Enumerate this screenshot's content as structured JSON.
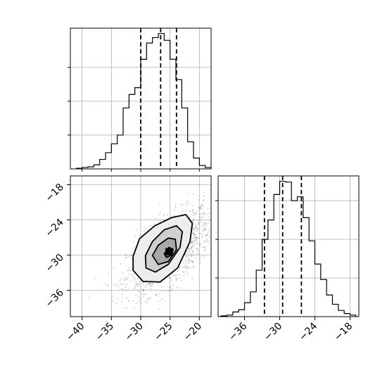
{
  "chart_data": [
    {
      "type": "histogram",
      "panel": "top-left (marginal of x parameter)",
      "xlim": [
        -42,
        -18
      ],
      "bin_edges": [
        -41,
        -40,
        -39,
        -38,
        -37,
        -36,
        -35,
        -34,
        -33,
        -32,
        -31,
        -30,
        -29,
        -28,
        -27,
        -26,
        -25,
        -24,
        -23,
        -22,
        -21,
        -20,
        -19,
        -18
      ],
      "counts": [
        1,
        2,
        3,
        6,
        14,
        24,
        37,
        50,
        90,
        110,
        120,
        162,
        186,
        194,
        200,
        190,
        162,
        132,
        90,
        40,
        16,
        5,
        2
      ],
      "quantiles": [
        -30,
        -26.6,
        -23.9
      ],
      "ticks": [],
      "grid": true
    },
    {
      "type": "scatter-contour",
      "panel": "bottom-left (joint distribution)",
      "xlim": [
        -42,
        -18
      ],
      "ylim": [
        -40.5,
        -16.5
      ],
      "x_ticks": [
        -40,
        -35,
        -30,
        -25,
        -20
      ],
      "y_ticks": [
        -18,
        -24,
        -30,
        -36
      ],
      "center": [
        -25.2,
        -29.4
      ],
      "density_peak": [
        -25.2,
        -29.4
      ],
      "contours": [
        [
          [
            -31.3,
            -30.2
          ],
          [
            -30.2,
            -27.2
          ],
          [
            -27.6,
            -25.0
          ],
          [
            -24.7,
            -23.6
          ],
          [
            -22.3,
            -23.1
          ],
          [
            -21.2,
            -24.6
          ],
          [
            -21.6,
            -27.7
          ],
          [
            -23.7,
            -32.2
          ],
          [
            -26.7,
            -34.6
          ],
          [
            -29.6,
            -34.5
          ],
          [
            -31.3,
            -32.6
          ]
        ],
        [
          [
            -29.2,
            -30.1
          ],
          [
            -28.0,
            -27.7
          ],
          [
            -26.0,
            -25.7
          ],
          [
            -23.9,
            -25.0
          ],
          [
            -22.9,
            -26.0
          ],
          [
            -23.3,
            -28.7
          ],
          [
            -25.3,
            -31.6
          ],
          [
            -27.5,
            -32.9
          ],
          [
            -29.1,
            -32.2
          ]
        ],
        [
          [
            -28.0,
            -30.1
          ],
          [
            -27.0,
            -28.3
          ],
          [
            -25.3,
            -27.1
          ],
          [
            -24.1,
            -27.3
          ],
          [
            -23.9,
            -29.1
          ],
          [
            -25.3,
            -31.1
          ],
          [
            -27.0,
            -31.6
          ]
        ],
        [
          [
            -26.0,
            -29.8
          ],
          [
            -25.2,
            -28.7
          ],
          [
            -24.5,
            -29.0
          ],
          [
            -24.7,
            -30.0
          ],
          [
            -25.6,
            -30.4
          ]
        ]
      ],
      "grid": true
    },
    {
      "type": "histogram",
      "panel": "bottom-right (marginal of y parameter)",
      "xlim": [
        -40.5,
        -16.5
      ],
      "x_ticks": [
        -36,
        -30,
        -24,
        -18
      ],
      "bin_edges": [
        -40,
        -39,
        -38,
        -37,
        -36,
        -35,
        -34,
        -33,
        -32,
        -31,
        -30,
        -29,
        -28,
        -27,
        -26,
        -25,
        -24,
        -23,
        -22,
        -21,
        -20,
        -19,
        -18,
        -17
      ],
      "counts": [
        1,
        2,
        6,
        9,
        18,
        32,
        60,
        100,
        125,
        158,
        175,
        174,
        150,
        155,
        128,
        98,
        68,
        48,
        28,
        16,
        8,
        4,
        2
      ],
      "quantiles": [
        -32.6,
        -29.5,
        -26.3
      ],
      "grid": true
    }
  ]
}
